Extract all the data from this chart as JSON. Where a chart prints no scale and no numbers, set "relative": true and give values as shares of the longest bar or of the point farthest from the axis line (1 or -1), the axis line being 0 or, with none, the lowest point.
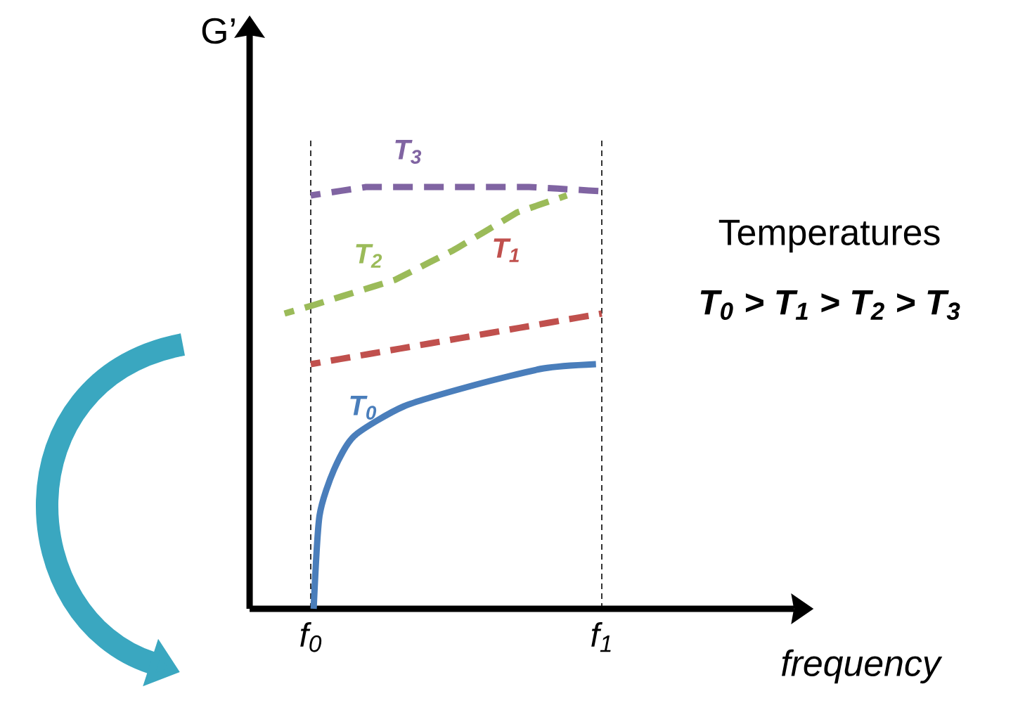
{
  "chart_data": {
    "type": "line",
    "relative": true,
    "xlabel": "frequency",
    "ylabel": "G’",
    "xlim": [
      -0.21,
      1.66
    ],
    "xticks": [
      {
        "value": 0,
        "label": "f$_{0}$"
      },
      {
        "value": 1,
        "label": "f$_{1}$"
      }
    ],
    "ref_lines": [
      {
        "axis": "x",
        "value": 0,
        "color": "#000000",
        "line_style": "dashed"
      },
      {
        "axis": "x",
        "value": 1,
        "color": "#000000",
        "line_style": "dashed"
      }
    ],
    "legend": false,
    "marker": "none",
    "annotations": [
      "Temperatures",
      "T$_{0}$ > T$_{1}$ > T$_{2}$ > T$_{3}$"
    ],
    "series": [
      {
        "name": "T$_{0}$",
        "color": "#4a7ebb",
        "line_style": "solid",
        "x": [
          0.01,
          0.03,
          0.08,
          0.15,
          0.32,
          0.56,
          0.8,
          0.98
        ],
        "values": [
          0,
          0.22,
          0.33,
          0.41,
          0.48,
          0.53,
          0.57,
          0.58
        ]
      },
      {
        "name": "T$_{1}$",
        "color": "#c0504d",
        "line_style": "dashed",
        "x": [
          0,
          1
        ],
        "values": [
          0.58,
          0.7
        ]
      },
      {
        "name": "T$_{2}$",
        "color": "#9bbb59",
        "line_style": "dashed",
        "x": [
          -0.09,
          0.01,
          0.29,
          0.49,
          0.71,
          0.88
        ],
        "values": [
          0.7,
          0.72,
          0.78,
          0.85,
          0.94,
          0.98
        ]
      },
      {
        "name": "T$_{3}$",
        "color": "#8064a2",
        "line_style": "dashed",
        "x": [
          0,
          0.19,
          0.56,
          0.75,
          1
        ],
        "values": [
          0.98,
          1.0,
          1.0,
          1.0,
          0.99
        ]
      }
    ]
  }
}
